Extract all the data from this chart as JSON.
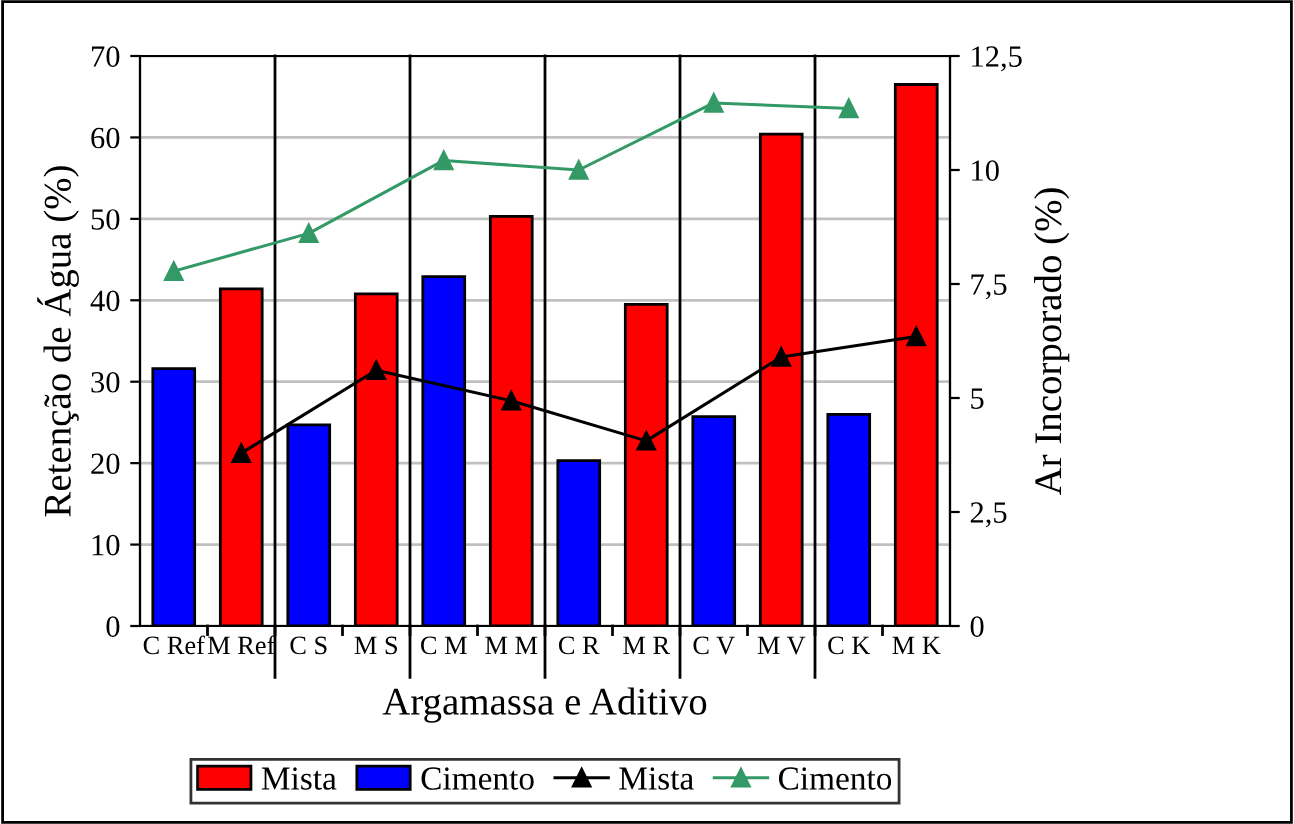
{
  "chart_data": {
    "type": "bar",
    "xlabel": "Argamassa e Aditivo",
    "ylabel": "Retenção de Água (%)",
    "y2label": "Ar Incorporado (%)",
    "categories": [
      "C Ref",
      "M Ref",
      "C S",
      "M S",
      "C M",
      "M M",
      "C R",
      "M R",
      "C V",
      "M V",
      "C K",
      "M K"
    ],
    "series": [
      {
        "name": "Mista",
        "color": "#ff0000",
        "values": [
          null,
          41.4,
          null,
          40.8,
          null,
          50.3,
          null,
          39.5,
          null,
          60.4,
          null,
          66.5
        ]
      },
      {
        "name": "Cimento",
        "color": "#0000ff",
        "values": [
          31.6,
          null,
          24.7,
          null,
          42.9,
          null,
          20.3,
          null,
          25.7,
          null,
          26.0,
          null
        ]
      },
      {
        "name": "Mista",
        "type": "line",
        "axis": "y2",
        "color": "#000000",
        "marker": "triangle",
        "values": [
          null,
          3.79,
          null,
          5.61,
          null,
          4.94,
          null,
          4.06,
          null,
          5.9,
          null,
          6.35
        ]
      },
      {
        "name": "Cimento",
        "type": "line",
        "axis": "y2",
        "color": "#339966",
        "marker": "triangle",
        "values": [
          7.78,
          null,
          8.61,
          null,
          10.21,
          null,
          10.0,
          null,
          11.47,
          null,
          11.35,
          null
        ]
      }
    ],
    "ylim": [
      0,
      70
    ],
    "yticks": [
      0,
      10,
      20,
      30,
      40,
      50,
      60,
      70
    ],
    "y2lim": [
      0,
      12.5
    ],
    "y2ticks": [
      0,
      {
        "value": 2.5,
        "label": "2,5"
      },
      5,
      {
        "value": 7.5,
        "label": "7,5"
      },
      10,
      {
        "value": 12.5,
        "label": "12,5"
      }
    ],
    "grid": "y",
    "legend": "bottom"
  }
}
